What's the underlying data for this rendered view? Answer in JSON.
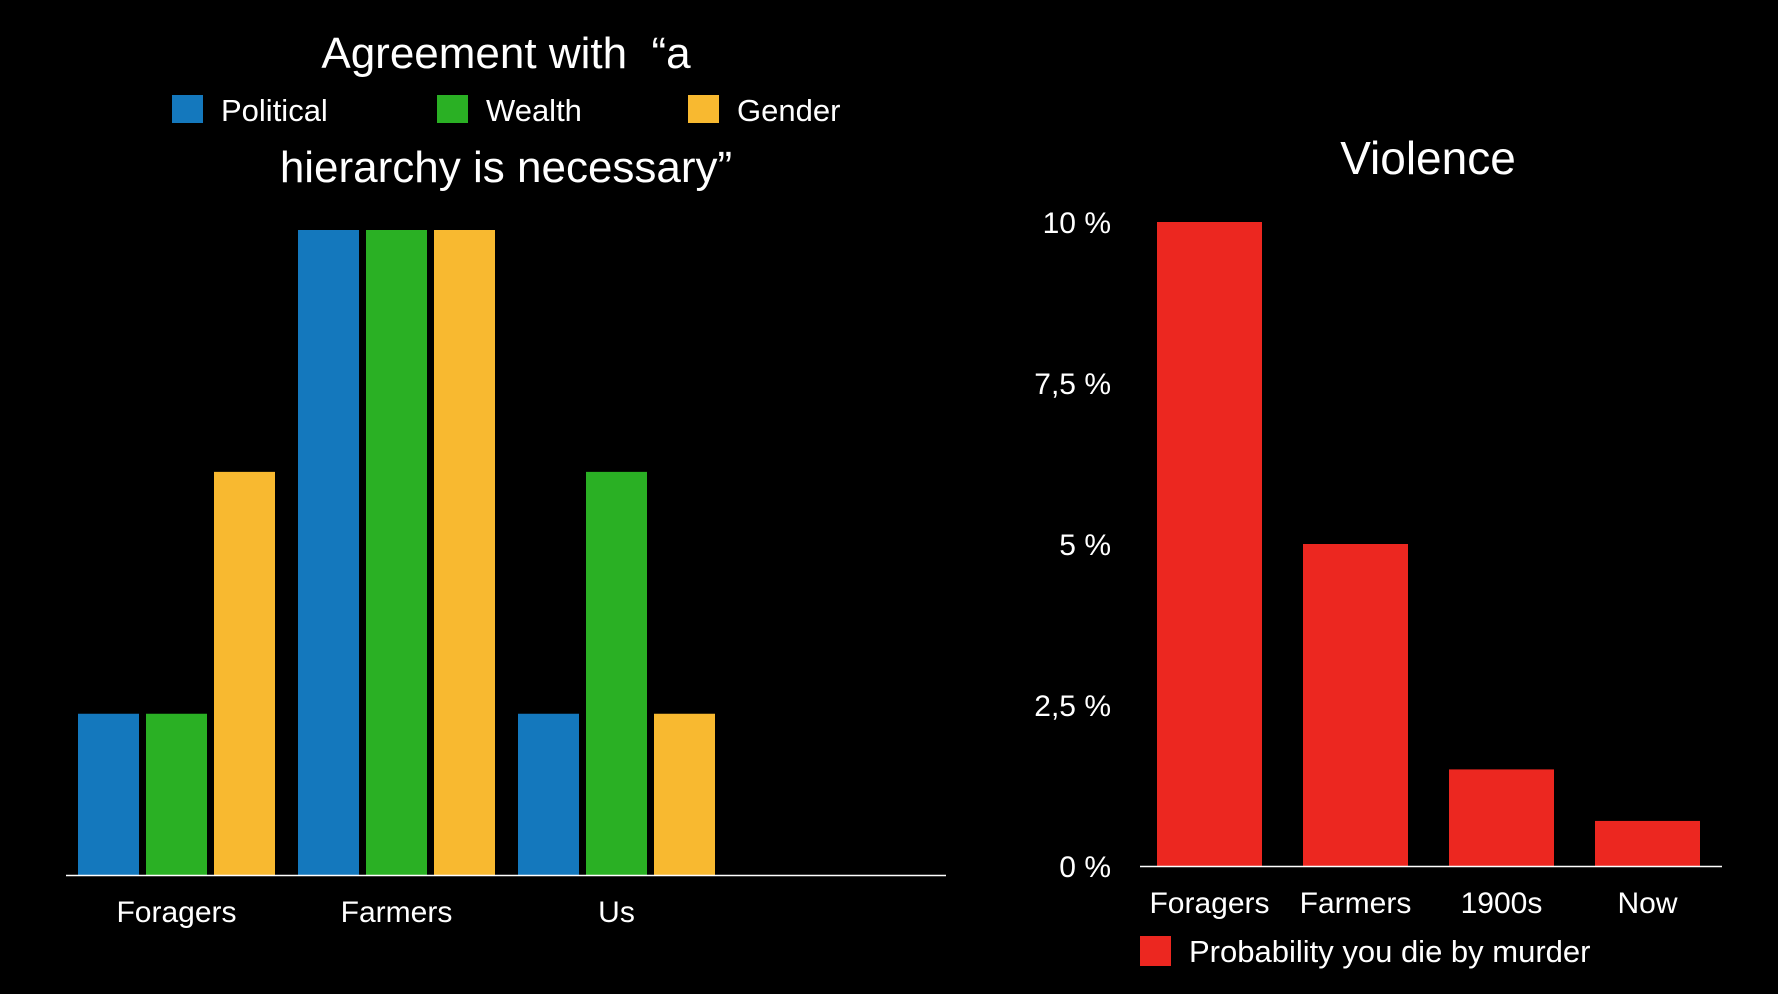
{
  "chart_data": [
    {
      "type": "bar",
      "title_line1": "Agreement with  “a",
      "title_line2": "hierarchy is necessary”",
      "categories": [
        "Foragers",
        "Farmers",
        "Us"
      ],
      "series": [
        {
          "name": "Political",
          "color": "#1478bd",
          "values": [
            1,
            4,
            1
          ]
        },
        {
          "name": "Wealth",
          "color": "#2ab024",
          "values": [
            1,
            4,
            2.5
          ]
        },
        {
          "name": "Gender",
          "color": "#f8b930",
          "values": [
            2.5,
            4,
            1
          ]
        }
      ],
      "ylim": [
        0,
        4
      ],
      "axis_ticks_shown": false
    },
    {
      "type": "bar",
      "title": "Violence",
      "categories": [
        "Foragers",
        "Farmers",
        "1900s",
        "Now"
      ],
      "series": [
        {
          "name": "Probability you die by murder",
          "color": "#ec2720",
          "values": [
            10,
            5,
            1.5,
            0.7
          ]
        }
      ],
      "ylim": [
        0,
        10
      ],
      "yticks": [
        0,
        2.5,
        5,
        7.5,
        10
      ],
      "ytick_labels": [
        "0 %",
        "2,5 %",
        "5 %",
        "7,5 %",
        "10 %"
      ]
    }
  ]
}
